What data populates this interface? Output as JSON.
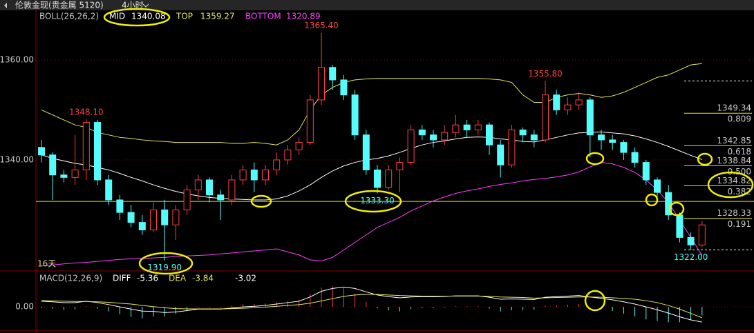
{
  "header": {
    "instrument": "伦敦金现(贵金属 5120)",
    "period": "4小时"
  },
  "chart_data": [
    {
      "type": "candlestick",
      "indicator_label": "BOLL(26,26,2)",
      "period_label": "16天",
      "up_color": "#ff4040",
      "down_color": "#54fcfc",
      "ylim": [
        1318,
        1369.5
      ],
      "yticks": [
        {
          "value": 1340,
          "label": "1340.00"
        },
        {
          "value": 1360,
          "label": "1360.00"
        }
      ],
      "grid": true,
      "hline": 1331.7,
      "hline_color": "#e8e800",
      "candles": [
        [
          1342.5,
          1344,
          1339.5,
          1341
        ],
        [
          1341,
          1341.5,
          1332,
          1337
        ],
        [
          1337,
          1338,
          1335.5,
          1336.5
        ],
        [
          1336.5,
          1345,
          1335,
          1338
        ],
        [
          1338,
          1348.1,
          1336,
          1347.5
        ],
        [
          1347.5,
          1348,
          1335,
          1336
        ],
        [
          1336,
          1337,
          1331,
          1332
        ],
        [
          1332,
          1333,
          1328,
          1329.5
        ],
        [
          1329.5,
          1331,
          1326.5,
          1327.5
        ],
        [
          1327.5,
          1329,
          1325,
          1326
        ],
        [
          1326,
          1331.5,
          1325.5,
          1330
        ],
        [
          1330,
          1332,
          1319.9,
          1327
        ],
        [
          1327,
          1331,
          1324,
          1330
        ],
        [
          1330,
          1335,
          1329,
          1334
        ],
        [
          1334,
          1337,
          1332,
          1336
        ],
        [
          1336,
          1336.5,
          1331.5,
          1333
        ],
        [
          1333,
          1334,
          1328,
          1332
        ],
        [
          1332,
          1337,
          1331,
          1336
        ],
        [
          1336,
          1339,
          1335,
          1338
        ],
        [
          1338,
          1339.5,
          1333.5,
          1336
        ],
        [
          1336,
          1339,
          1335,
          1338
        ],
        [
          1338,
          1341.5,
          1337,
          1340
        ],
        [
          1340,
          1343,
          1339,
          1342
        ],
        [
          1342,
          1344.5,
          1341,
          1343.5
        ],
        [
          1343.5,
          1353,
          1343,
          1352
        ],
        [
          1352,
          1365.4,
          1351,
          1358.5
        ],
        [
          1358.5,
          1359,
          1354,
          1356
        ],
        [
          1356,
          1357,
          1352,
          1353
        ],
        [
          1353,
          1354,
          1344,
          1345
        ],
        [
          1345,
          1346,
          1337,
          1338
        ],
        [
          1338,
          1339,
          1333.3,
          1334.5
        ],
        [
          1334.5,
          1339,
          1334,
          1338
        ],
        [
          1338,
          1340.5,
          1333.5,
          1339.5
        ],
        [
          1339.5,
          1347,
          1339,
          1346
        ],
        [
          1346,
          1347,
          1344,
          1345
        ],
        [
          1345,
          1346,
          1342.5,
          1344
        ],
        [
          1344,
          1347,
          1343,
          1345.5
        ],
        [
          1345.5,
          1349,
          1344.5,
          1347
        ],
        [
          1347,
          1348,
          1344.5,
          1346
        ],
        [
          1346,
          1348,
          1345,
          1347
        ],
        [
          1347,
          1347.5,
          1341,
          1343
        ],
        [
          1343,
          1344,
          1336.5,
          1339
        ],
        [
          1339,
          1347,
          1338.5,
          1346
        ],
        [
          1346,
          1346.5,
          1343.5,
          1345
        ],
        [
          1345,
          1346,
          1342.5,
          1344
        ],
        [
          1344,
          1355.8,
          1343.5,
          1353
        ],
        [
          1353,
          1354,
          1349,
          1350
        ],
        [
          1350,
          1352.5,
          1349,
          1351
        ],
        [
          1351,
          1353.5,
          1350,
          1352
        ],
        [
          1352,
          1352.5,
          1340.5,
          1345
        ],
        [
          1345,
          1346,
          1342,
          1344
        ],
        [
          1344,
          1345,
          1342,
          1343.5
        ],
        [
          1343.5,
          1344,
          1340,
          1341.5
        ],
        [
          1341.5,
          1342.5,
          1338.5,
          1339.5
        ],
        [
          1339.5,
          1340,
          1335,
          1336
        ],
        [
          1336,
          1336.5,
          1332.5,
          1333.5
        ],
        [
          1333.5,
          1335,
          1328,
          1329
        ],
        [
          1329,
          1329.5,
          1323.5,
          1324.5
        ],
        [
          1324.5,
          1325.5,
          1322,
          1323
        ],
        [
          1323,
          1327.8,
          1322.5,
          1327
        ]
      ],
      "series": [
        {
          "name": "MID",
          "color": "#ffffff",
          "values": [
            1341,
            1340.3,
            1339.8,
            1339.3,
            1339,
            1338.5,
            1338,
            1337.3,
            1336.5,
            1335.8,
            1335,
            1334.3,
            1333.7,
            1333.2,
            1332.8,
            1332.5,
            1332.3,
            1332.2,
            1332.1,
            1332,
            1332,
            1332.2,
            1332.8,
            1333.8,
            1335,
            1336.5,
            1337.8,
            1338.8,
            1339.5,
            1340,
            1340.3,
            1340.8,
            1341.5,
            1342.3,
            1343,
            1343.5,
            1343.8,
            1344.2,
            1344.5,
            1344.6,
            1344.5,
            1344.2,
            1344,
            1343.7,
            1343.6,
            1344,
            1344.5,
            1345,
            1345.4,
            1345.5,
            1345.6,
            1345.4,
            1345.2,
            1344.8,
            1344.2,
            1343.5,
            1342.7,
            1341.8,
            1340.9,
            1340.08
          ]
        },
        {
          "name": "TOP",
          "color": "#e8e85a",
          "values": [
            1350,
            1349,
            1348,
            1347,
            1346.5,
            1345.5,
            1345,
            1344.5,
            1344.3,
            1344,
            1343.8,
            1343.7,
            1343.5,
            1343.5,
            1343.5,
            1343.5,
            1343.5,
            1343.3,
            1343.3,
            1343.5,
            1343.3,
            1343,
            1344,
            1346,
            1350,
            1353,
            1354.5,
            1355.5,
            1356,
            1356.2,
            1356.3,
            1356.3,
            1356.3,
            1356.3,
            1356.3,
            1356.3,
            1356.3,
            1356.3,
            1356.3,
            1356.3,
            1356.2,
            1356,
            1355.5,
            1353,
            1351.5,
            1351.5,
            1352.5,
            1353,
            1353.3,
            1353,
            1352.5,
            1352.8,
            1353.5,
            1354.5,
            1355.5,
            1356.5,
            1357,
            1358,
            1359,
            1359.27
          ]
        },
        {
          "name": "BOTTOM",
          "color": "#ff40ff",
          "values": [
            1318.8,
            1319,
            1319.2,
            1319.4,
            1319.5,
            1319.7,
            1319.9,
            1320.1,
            1320.2,
            1320.3,
            1320.4,
            1320.5,
            1320.7,
            1320.8,
            1320.9,
            1321,
            1321.2,
            1321.4,
            1321.6,
            1321.8,
            1322,
            1322.2,
            1321.6,
            1321,
            1320,
            1319.8,
            1320.5,
            1322,
            1323.5,
            1325,
            1326.5,
            1327.5,
            1328.5,
            1329.8,
            1330.8,
            1331.8,
            1332.6,
            1333.3,
            1333.8,
            1334.2,
            1334.7,
            1335.1,
            1335.4,
            1335.8,
            1336.1,
            1336.3,
            1336.6,
            1337,
            1337.6,
            1338.6,
            1339.5,
            1339.2,
            1338.5,
            1337.5,
            1336,
            1334,
            1331.5,
            1328,
            1324.5,
            1320.89
          ]
        }
      ],
      "annotations": [
        {
          "value": 1365.4,
          "label": "1365.40"
        },
        {
          "value": 1348.1,
          "label": "1348.10"
        },
        {
          "value": 1355.8,
          "label": "1355.80"
        },
        {
          "value": 1319.9,
          "label": "1319.90"
        },
        {
          "value": 1333.3,
          "label": "1333.30"
        },
        {
          "value": 1322,
          "label": "1322.00"
        }
      ],
      "fib_levels": [
        {
          "value": 1355.8
        },
        {
          "value": 1349.34,
          "ratio": "0.809"
        },
        {
          "value": 1342.85,
          "ratio": "0.618"
        },
        {
          "value": 1338.84,
          "ratio": "0.500"
        },
        {
          "value": 1334.82,
          "ratio": "0.382"
        },
        {
          "value": 1328.33,
          "ratio": "0.191"
        },
        {
          "value": 1322
        }
      ],
      "fib_color": "#e8e800"
    },
    {
      "type": "macd",
      "title": "MACD(12,26,9)",
      "ylim": [
        -8,
        11.7
      ],
      "yticks": [
        {
          "value": 0,
          "label": "0.00"
        }
      ],
      "series": [
        {
          "name": "DIFF",
          "color": "#ffffff",
          "values": [
            2,
            1.8,
            1.5,
            1.5,
            2,
            1.5,
            0.8,
            0,
            -0.8,
            -1.5,
            -1.6,
            -2,
            -1.8,
            -1.3,
            -0.8,
            -0.8,
            -0.8,
            -0.4,
            0,
            0.2,
            0.5,
            1,
            1.5,
            2,
            3.5,
            5.5,
            6.5,
            7,
            6.5,
            5.3,
            4.2,
            3.6,
            3.2,
            3.5,
            3.6,
            3.6,
            3.7,
            3.9,
            3.9,
            3.9,
            3.4,
            2.7,
            2.8,
            2.7,
            2.6,
            3.4,
            3.6,
            3.8,
            4,
            3.5,
            3,
            2.5,
            1.8,
            1,
            0,
            -1,
            -2.2,
            -3.5,
            -4.6,
            -5.36
          ]
        },
        {
          "name": "DEA",
          "color": "#e8e85a",
          "values": [
            2.2,
            2.1,
            2,
            1.9,
            1.9,
            1.8,
            1.6,
            1.3,
            1,
            0.5,
            0.1,
            -0.3,
            -0.6,
            -0.7,
            -0.7,
            -0.7,
            -0.7,
            -0.6,
            -0.5,
            -0.3,
            -0.1,
            0.2,
            0.5,
            0.8,
            1.3,
            2.1,
            2.9,
            3.7,
            4.2,
            4.4,
            4.4,
            4.2,
            4,
            3.9,
            3.8,
            3.8,
            3.8,
            3.8,
            3.8,
            3.8,
            3.7,
            3.5,
            3.4,
            3.3,
            3.1,
            3.2,
            3.3,
            3.4,
            3.5,
            3.5,
            3.4,
            3.2,
            3,
            2.7,
            2.2,
            1.5,
            0.5,
            -0.8,
            -2.3,
            -3.84
          ]
        }
      ],
      "bars": {
        "up_color": "#ff4040",
        "down_color": "#54fcfc",
        "values": [
          -0.4,
          -0.6,
          -1,
          -0.8,
          0.2,
          -0.6,
          -1.6,
          -2.6,
          -3.6,
          -4,
          -3.4,
          -3.4,
          -2.4,
          -1.2,
          -0.2,
          -0.2,
          -0.2,
          0.4,
          1,
          1,
          1.2,
          1.6,
          2,
          2.4,
          4.4,
          6.8,
          7.2,
          6.6,
          4.6,
          1.8,
          -0.4,
          -1.2,
          -1.6,
          -0.8,
          -0.4,
          -0.4,
          -0.2,
          0.2,
          0.2,
          0.2,
          -0.6,
          -1.6,
          -1.2,
          -1.2,
          -1,
          0.4,
          0.6,
          0.8,
          1,
          0,
          -0.8,
          -1.4,
          -2.4,
          -3.4,
          -4.4,
          -5,
          -5.4,
          -5.4,
          -4.6,
          -3.02
        ]
      }
    }
  ]
}
